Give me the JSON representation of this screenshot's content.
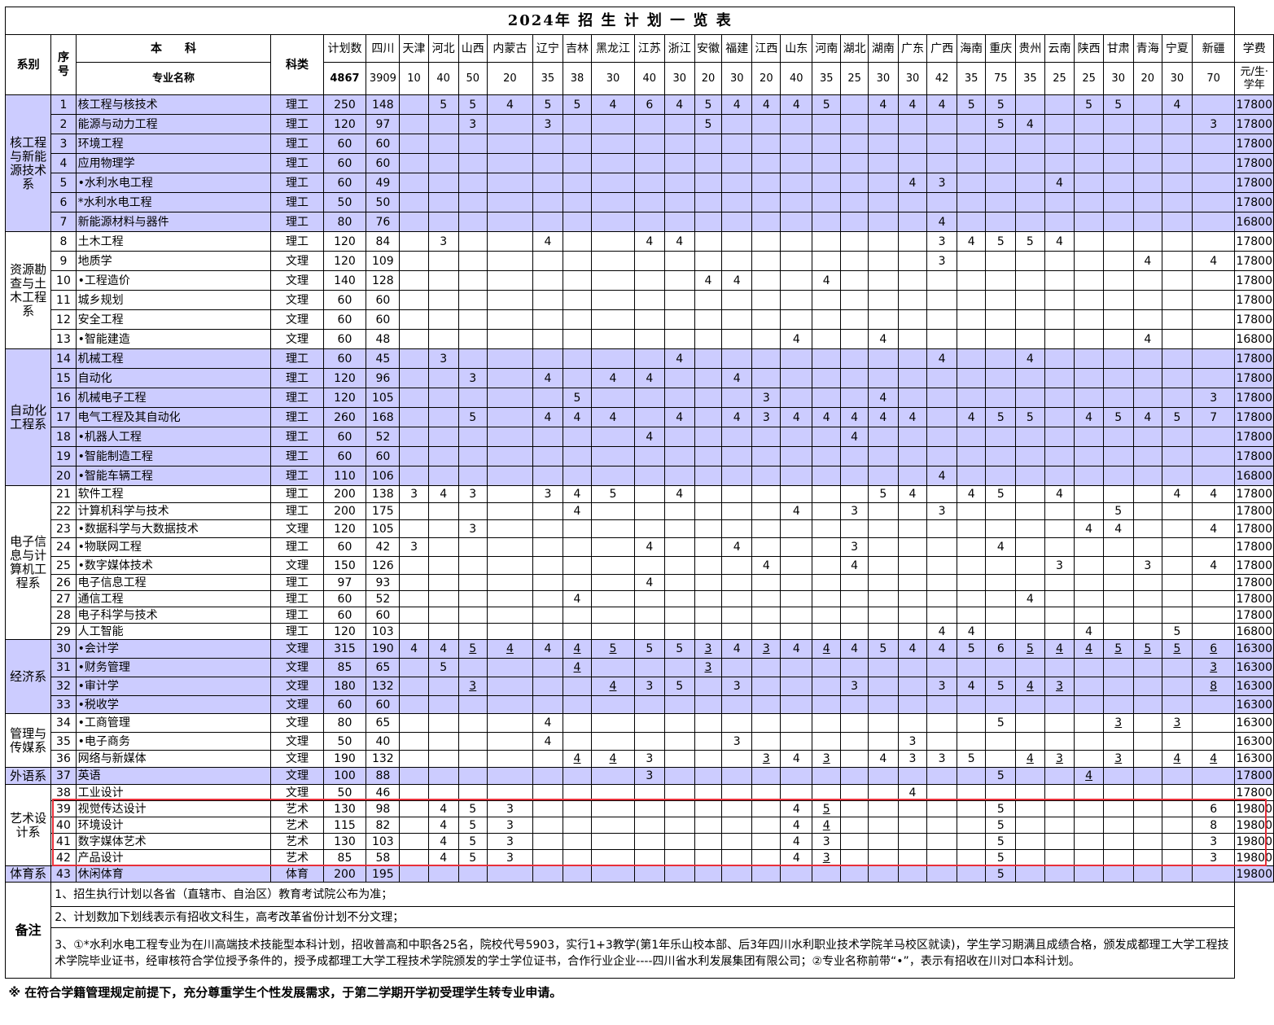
{
  "title": "2024年 招 生 计 划 一 览 表",
  "header": {
    "dept": "系别",
    "seq": "序号",
    "benke": "本　　科",
    "major": "专业名称",
    "category": "科类",
    "plan": "计划数",
    "total": "4867",
    "fee_label": "学费",
    "fee_unit": "元/生·学年",
    "provinces": [
      {
        "name": "四川",
        "count": "3909"
      },
      {
        "name": "天津",
        "count": "10"
      },
      {
        "name": "河北",
        "count": "40"
      },
      {
        "name": "山西",
        "count": "50"
      },
      {
        "name": "内蒙古",
        "count": "20"
      },
      {
        "name": "辽宁",
        "count": "35"
      },
      {
        "name": "吉林",
        "count": "38"
      },
      {
        "name": "黑龙江",
        "count": "30"
      },
      {
        "name": "江苏",
        "count": "40"
      },
      {
        "name": "浙江",
        "count": "30"
      },
      {
        "name": "安徽",
        "count": "20"
      },
      {
        "name": "福建",
        "count": "30"
      },
      {
        "name": "江西",
        "count": "20"
      },
      {
        "name": "山东",
        "count": "40"
      },
      {
        "name": "河南",
        "count": "35"
      },
      {
        "name": "湖北",
        "count": "25"
      },
      {
        "name": "湖南",
        "count": "30"
      },
      {
        "name": "广东",
        "count": "30"
      },
      {
        "name": "广西",
        "count": "42"
      },
      {
        "name": "海南",
        "count": "35"
      },
      {
        "name": "重庆",
        "count": "75"
      },
      {
        "name": "贵州",
        "count": "35"
      },
      {
        "name": "云南",
        "count": "25"
      },
      {
        "name": "陕西",
        "count": "25"
      },
      {
        "name": "甘肃",
        "count": "30"
      },
      {
        "name": "青海",
        "count": "20"
      },
      {
        "name": "宁夏",
        "count": "30"
      },
      {
        "name": "新疆",
        "count": "70"
      }
    ]
  },
  "departments": [
    {
      "name": "核工程与新能源技术系",
      "shade": true,
      "rows": [
        {
          "no": "1",
          "major": "核工程与核技术",
          "cat": "理工",
          "plan": "250",
          "sc": "148",
          "p": {
            "河北": "5",
            "山西": "5",
            "内蒙古": "4",
            "辽宁": "5",
            "吉林": "5",
            "黑龙江": "4",
            "江苏": "6",
            "浙江": "4",
            "安徽": "5",
            "福建": "4",
            "江西": "4",
            "山东": "4",
            "河南": "5",
            "湖南": "4",
            "广东": "4",
            "广西": "4",
            "海南": "5",
            "重庆": "5",
            "陕西": "5",
            "甘肃": "5",
            "宁夏": "4"
          },
          "fee": "17800"
        },
        {
          "no": "2",
          "major": "能源与动力工程",
          "cat": "理工",
          "plan": "120",
          "sc": "97",
          "p": {
            "山西": "3",
            "辽宁": "3",
            "安徽": "5",
            "重庆": "5",
            "贵州": "4",
            "新疆": "3"
          },
          "fee": "17800"
        },
        {
          "no": "3",
          "major": "环境工程",
          "cat": "理工",
          "plan": "60",
          "sc": "60",
          "p": {},
          "fee": "17800"
        },
        {
          "no": "4",
          "major": "应用物理学",
          "cat": "理工",
          "plan": "60",
          "sc": "60",
          "p": {},
          "fee": "17800"
        },
        {
          "no": "5",
          "major": "•水利水电工程",
          "cat": "理工",
          "plan": "60",
          "sc": "49",
          "p": {
            "广东": "4",
            "广西": "3",
            "云南": "4"
          },
          "fee": "17800"
        },
        {
          "no": "6",
          "major": "*水利水电工程",
          "cat": "理工",
          "plan": "50",
          "sc": "50",
          "p": {},
          "fee": "17800"
        },
        {
          "no": "7",
          "major": "新能源材料与器件",
          "cat": "理工",
          "plan": "80",
          "sc": "76",
          "p": {
            "广西": "4"
          },
          "fee": "16800"
        }
      ]
    },
    {
      "name": "资源勘查与土木工程系",
      "shade": false,
      "rows": [
        {
          "no": "8",
          "major": "土木工程",
          "cat": "理工",
          "plan": "120",
          "sc": "84",
          "p": {
            "河北": "3",
            "辽宁": "4",
            "江苏": "4",
            "浙江": "4",
            "广西": "3",
            "海南": "4",
            "重庆": "5",
            "贵州": "5",
            "云南": "4"
          },
          "fee": "17800"
        },
        {
          "no": "9",
          "major": "地质学",
          "cat": "文理",
          "plan": "120",
          "sc": "109",
          "p": {
            "广西": "3",
            "青海": "4",
            "新疆": "4"
          },
          "fee": "17800"
        },
        {
          "no": "10",
          "major": "•工程造价",
          "cat": "文理",
          "plan": "140",
          "sc": "128",
          "p": {
            "安徽": "4",
            "福建": "4",
            "河南": "4"
          },
          "fee": "17800"
        },
        {
          "no": "11",
          "major": "城乡规划",
          "cat": "文理",
          "plan": "60",
          "sc": "60",
          "p": {},
          "fee": "17800"
        },
        {
          "no": "12",
          "major": "安全工程",
          "cat": "文理",
          "plan": "60",
          "sc": "60",
          "p": {},
          "fee": "17800"
        },
        {
          "no": "13",
          "major": "•智能建造",
          "cat": "文理",
          "plan": "60",
          "sc": "48",
          "p": {
            "山东": "4",
            "湖南": "4",
            "青海": "4"
          },
          "fee": "16800"
        }
      ]
    },
    {
      "name": "自动化工程系",
      "shade": true,
      "rows": [
        {
          "no": "14",
          "major": "机械工程",
          "cat": "理工",
          "plan": "60",
          "sc": "45",
          "p": {
            "河北": "3",
            "浙江": "4",
            "广西": "4",
            "贵州": "4"
          },
          "fee": "17800"
        },
        {
          "no": "15",
          "major": "自动化",
          "cat": "理工",
          "plan": "120",
          "sc": "96",
          "p": {
            "山西": "3",
            "辽宁": "4",
            "黑龙江": "4",
            "江苏": "4",
            "福建": "4"
          },
          "fee": "17800"
        },
        {
          "no": "16",
          "major": "机械电子工程",
          "cat": "理工",
          "plan": "120",
          "sc": "105",
          "p": {
            "吉林": "5",
            "江西": "3",
            "湖南": "4",
            "新疆": "3"
          },
          "fee": "17800"
        },
        {
          "no": "17",
          "major": "电气工程及其自动化",
          "cat": "理工",
          "plan": "260",
          "sc": "168",
          "p": {
            "山西": "5",
            "辽宁": "4",
            "吉林": "4",
            "黑龙江": "4",
            "浙江": "4",
            "福建": "4",
            "江西": "3",
            "山东": "4",
            "河南": "4",
            "湖北": "4",
            "湖南": "4",
            "广东": "4",
            "海南": "4",
            "重庆": "5",
            "贵州": "5",
            "陕西": "4",
            "甘肃": "5",
            "青海": "4",
            "宁夏": "5",
            "新疆": "7"
          },
          "fee": "17800"
        },
        {
          "no": "18",
          "major": "•机器人工程",
          "cat": "理工",
          "plan": "60",
          "sc": "52",
          "p": {
            "江苏": "4",
            "湖北": "4"
          },
          "fee": "17800"
        },
        {
          "no": "19",
          "major": "•智能制造工程",
          "cat": "理工",
          "plan": "60",
          "sc": "60",
          "p": {},
          "fee": "17800"
        },
        {
          "no": "20",
          "major": "•智能车辆工程",
          "cat": "理工",
          "plan": "110",
          "sc": "106",
          "p": {
            "广西": "4"
          },
          "fee": "16800"
        }
      ]
    },
    {
      "name": "电子信息与计算机工程系",
      "shade": false,
      "rows": [
        {
          "no": "21",
          "major": "软件工程",
          "cat": "理工",
          "plan": "200",
          "sc": "138",
          "p": {
            "天津": "3",
            "河北": "4",
            "山西": "3",
            "辽宁": "3",
            "吉林": "4",
            "黑龙江": "5",
            "浙江": "4",
            "湖南": "5",
            "广东": "4",
            "海南": "4",
            "重庆": "5",
            "云南": "4",
            "宁夏": "4",
            "新疆": "4"
          },
          "fee": "17800"
        },
        {
          "no": "22",
          "major": "计算机科学与技术",
          "cat": "理工",
          "plan": "200",
          "sc": "175",
          "p": {
            "吉林": "4",
            "山东": "4",
            "湖北": "3",
            "广西": "3",
            "甘肃": "5"
          },
          "fee": "17800"
        },
        {
          "no": "23",
          "major": "•数据科学与大数据技术",
          "cat": "文理",
          "plan": "120",
          "sc": "105",
          "p": {
            "山西": "3",
            "陕西": "4",
            "甘肃": "4",
            "新疆": "4"
          },
          "fee": "17800"
        },
        {
          "no": "24",
          "major": "•物联网工程",
          "cat": "理工",
          "plan": "60",
          "sc": "42",
          "p": {
            "天津": "3",
            "江苏": "4",
            "福建": "4",
            "湖北": "3",
            "重庆": "4"
          },
          "fee": "17800"
        },
        {
          "no": "25",
          "major": "•数字媒体技术",
          "cat": "文理",
          "plan": "150",
          "sc": "126",
          "p": {
            "江西": "4",
            "湖北": "4",
            "云南": "3",
            "青海": "3",
            "新疆": "4"
          },
          "fee": "17800"
        },
        {
          "no": "26",
          "major": "电子信息工程",
          "cat": "理工",
          "plan": "97",
          "sc": "93",
          "p": {
            "江苏": "4"
          },
          "fee": "17800"
        },
        {
          "no": "27",
          "major": "通信工程",
          "cat": "理工",
          "plan": "60",
          "sc": "52",
          "p": {
            "吉林": "4",
            "贵州": "4"
          },
          "fee": "17800"
        },
        {
          "no": "28",
          "major": "电子科学与技术",
          "cat": "理工",
          "plan": "60",
          "sc": "60",
          "p": {},
          "fee": "17800"
        },
        {
          "no": "29",
          "major": "人工智能",
          "cat": "理工",
          "plan": "120",
          "sc": "103",
          "p": {
            "广西": "4",
            "海南": "4",
            "陕西": "4",
            "宁夏": "5"
          },
          "fee": "16800"
        }
      ]
    },
    {
      "name": "经济系",
      "shade": true,
      "rows": [
        {
          "no": "30",
          "major": "•会计学",
          "cat": "文理",
          "plan": "315",
          "sc": "190",
          "p": {
            "天津": "4",
            "河北": "4",
            "山西": "5u",
            "内蒙古": "4u",
            "辽宁": "4",
            "吉林": "4u",
            "黑龙江": "5u",
            "江苏": "5",
            "浙江": "5",
            "安徽": "3u",
            "福建": "4",
            "江西": "3u",
            "山东": "4",
            "河南": "4u",
            "湖北": "4",
            "湖南": "5",
            "广东": "4",
            "广西": "4",
            "海南": "5",
            "重庆": "6",
            "贵州": "5u",
            "云南": "4u",
            "陕西": "4u",
            "甘肃": "5u",
            "青海": "5u",
            "宁夏": "5u",
            "新疆": "6u"
          },
          "fee": "16300"
        },
        {
          "no": "31",
          "major": "•财务管理",
          "cat": "文理",
          "plan": "85",
          "sc": "65",
          "p": {
            "河北": "5",
            "吉林": "4u",
            "安徽": "3u",
            "新疆": "3u"
          },
          "fee": "16300"
        },
        {
          "no": "32",
          "major": "•审计学",
          "cat": "文理",
          "plan": "180",
          "sc": "132",
          "p": {
            "山西": "3u",
            "黑龙江": "4u",
            "江苏": "3",
            "浙江": "5",
            "福建": "3",
            "湖北": "3",
            "广西": "3",
            "海南": "4",
            "重庆": "5",
            "贵州": "4u",
            "云南": "3u",
            "新疆": "8u"
          },
          "fee": "16300"
        },
        {
          "no": "33",
          "major": "•税收学",
          "cat": "文理",
          "plan": "60",
          "sc": "60",
          "p": {},
          "fee": "16300"
        }
      ]
    },
    {
      "name": "管理与传媒系",
      "shade": false,
      "rows": [
        {
          "no": "34",
          "major": "•工商管理",
          "cat": "文理",
          "plan": "80",
          "sc": "65",
          "p": {
            "辽宁": "4",
            "重庆": "5",
            "甘肃": "3u",
            "宁夏": "3u"
          },
          "fee": "16300"
        },
        {
          "no": "35",
          "major": "•电子商务",
          "cat": "文理",
          "plan": "50",
          "sc": "40",
          "p": {
            "辽宁": "4",
            "福建": "3",
            "广东": "3"
          },
          "fee": "16300"
        },
        {
          "no": "36",
          "major": "网络与新媒体",
          "cat": "文理",
          "plan": "190",
          "sc": "132",
          "p": {
            "吉林": "4u",
            "黑龙江": "4u",
            "江苏": "3",
            "江西": "3u",
            "山东": "4",
            "河南": "3u",
            "湖南": "4",
            "广东": "3",
            "广西": "3",
            "海南": "5",
            "贵州": "4u",
            "云南": "3u",
            "甘肃": "3u",
            "宁夏": "4u",
            "新疆": "4u"
          },
          "fee": "16300"
        }
      ]
    },
    {
      "name": "外语系",
      "shade": true,
      "rows": [
        {
          "no": "37",
          "major": "英语",
          "cat": "文理",
          "plan": "100",
          "sc": "88",
          "p": {
            "江苏": "3",
            "重庆": "5",
            "陕西": "4u"
          },
          "fee": "17800"
        }
      ]
    },
    {
      "name": "艺术设计系",
      "shade": false,
      "rows": [
        {
          "no": "38",
          "major": "工业设计",
          "cat": "文理",
          "plan": "50",
          "sc": "46",
          "p": {
            "广东": "4"
          },
          "fee": "17800"
        },
        {
          "no": "39",
          "major": "视觉传达设计",
          "cat": "艺术",
          "plan": "130",
          "sc": "98",
          "p": {
            "河北": "4",
            "山西": "5",
            "内蒙古": "3",
            "山东": "4",
            "河南": "5u",
            "重庆": "5",
            "新疆": "6"
          },
          "fee": "19800"
        },
        {
          "no": "40",
          "major": "环境设计",
          "cat": "艺术",
          "plan": "115",
          "sc": "82",
          "p": {
            "河北": "4",
            "山西": "5",
            "内蒙古": "3",
            "山东": "4",
            "河南": "4u",
            "重庆": "5",
            "新疆": "8"
          },
          "fee": "19800"
        },
        {
          "no": "41",
          "major": "数字媒体艺术",
          "cat": "艺术",
          "plan": "130",
          "sc": "103",
          "p": {
            "河北": "4",
            "山西": "5",
            "内蒙古": "3",
            "山东": "4",
            "河南": "3",
            "重庆": "5",
            "新疆": "3"
          },
          "fee": "19800"
        },
        {
          "no": "42",
          "major": "产品设计",
          "cat": "艺术",
          "plan": "85",
          "sc": "58",
          "p": {
            "河北": "4",
            "山西": "5",
            "内蒙古": "3",
            "山东": "4",
            "河南": "3u",
            "重庆": "5",
            "新疆": "3"
          },
          "fee": "19800"
        }
      ]
    },
    {
      "name": "体育系",
      "shade": true,
      "rows": [
        {
          "no": "43",
          "major": "休闲体育",
          "cat": "体育",
          "plan": "200",
          "sc": "195",
          "p": {
            "重庆": "5"
          },
          "fee": "19800"
        }
      ]
    }
  ],
  "notes_label": "备注",
  "notes": [
    "1、招生执行计划以各省（直辖市、自治区）教育考试院公布为准；",
    "2、计划数加下划线表示有招收文科生，高考改革省份计划不分文理；",
    "3、①*水利水电工程专业为在川高端技术技能型本科计划，招收普高和中职各25名，院校代号5903，实行1+3教学(第1年乐山校本部、后3年四川水利职业技术学院羊马校区就读)，学生学习期满且成绩合格，颁发成都理工大学工程技术学院毕业证书，经审核符合学位授予条件的，授予成都理工大学工程技术学院颁发的学士学位证书，合作行业企业----四川省水利发展集团有限公司；②专业名称前带“•”，表示有招收在川对口本科计划。"
  ],
  "footer": "※ 在符合学籍管理规定前提下，充分尊重学生个性发展需求，于第二学期开学初受理学生转专业申请。",
  "colors": {
    "shade": "#ccccff",
    "highlight": "#e8303a"
  }
}
